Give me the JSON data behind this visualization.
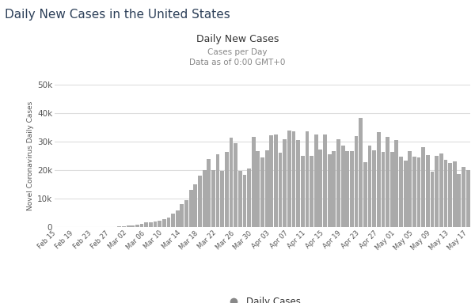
{
  "title_main": "Daily New Cases in the United States",
  "title_chart": "Daily New Cases",
  "subtitle1": "Cases per Day",
  "subtitle2": "Data as of 0:00 GMT+0",
  "ylabel": "Novel Coronavirus Daily Cases",
  "legend_label": "Daily Cases",
  "bar_color": "#aaaaaa",
  "background_color": "#ffffff",
  "grid_color": "#dddddd",
  "ylim": [
    0,
    50000
  ],
  "yticks": [
    0,
    10000,
    20000,
    30000,
    40000,
    50000
  ],
  "ytick_labels": [
    "0",
    "10k",
    "20k",
    "30k",
    "40k",
    "50k"
  ],
  "x_tick_positions": [
    0,
    4,
    8,
    12,
    16,
    20,
    24,
    28,
    32,
    36,
    40,
    44,
    48,
    52,
    56,
    60,
    64,
    68,
    72,
    76,
    80,
    84,
    88,
    92
  ],
  "x_tick_labels_display": [
    "Feb 15",
    "Feb 19",
    "Feb 23",
    "Feb 27",
    "Mar 02",
    "Mar 06",
    "Mar 10",
    "Mar 14",
    "Mar 18",
    "Mar 22",
    "Mar 26",
    "Mar 30",
    "Apr 03",
    "Apr 07",
    "Apr 11",
    "Apr 15",
    "Apr 19",
    "Apr 23",
    "Apr 27",
    "May 01",
    "May 05",
    "May 09",
    "May 13",
    "May 17"
  ],
  "all_values": [
    0,
    0,
    0,
    0,
    15,
    15,
    15,
    15,
    60,
    60,
    60,
    60,
    100,
    100,
    225,
    275,
    550,
    650,
    900,
    1200,
    1600,
    1800,
    2100,
    2400,
    2800,
    3500,
    4900,
    6000,
    8100,
    9600,
    13000,
    15000,
    18000,
    20000,
    24000,
    20000,
    25600,
    19800,
    26400,
    31400,
    29400,
    19700,
    18400,
    20500,
    31800,
    26700,
    24400,
    27000,
    32400,
    32600,
    26300,
    30800,
    33900,
    33700,
    30500,
    25000,
    33700,
    25200,
    32600,
    27200,
    32500,
    25500,
    26700,
    30800,
    28600,
    26800,
    26600,
    31900,
    38400,
    22900,
    28700,
    27100,
    33400,
    26400,
    31600,
    26500,
    30500,
    24700,
    23400,
    26800,
    24700,
    24400,
    28100,
    25400,
    19400,
    25000,
    26000,
    23700,
    22500,
    23000,
    18800,
    21100,
    20200
  ]
}
